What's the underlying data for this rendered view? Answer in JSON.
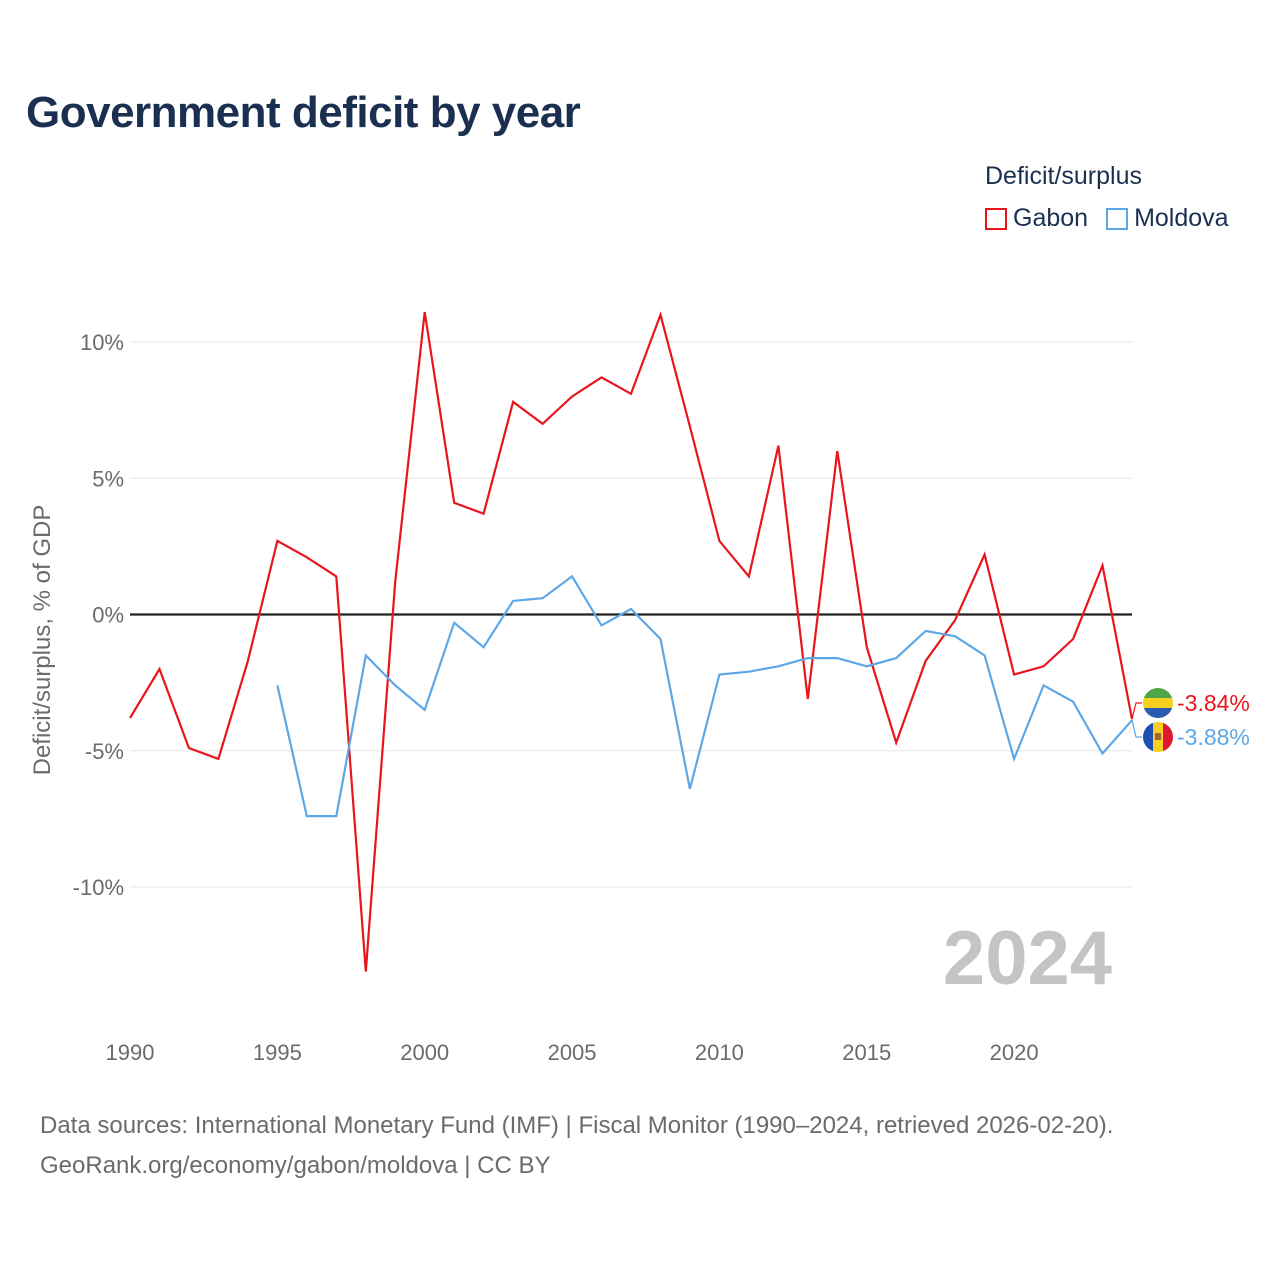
{
  "title": "Government deficit by year",
  "legend": {
    "title": "Deficit/surplus",
    "items": [
      {
        "name": "Gabon",
        "color": "#e8161b"
      },
      {
        "name": "Moldova",
        "color": "#5ea7e6"
      }
    ]
  },
  "footer": {
    "line1": "Data sources: International Monetary Fund (IMF) | Fiscal Monitor (1990–2024, retrieved 2026-02-20).",
    "line2": "GeoRank.org/economy/gabon/moldova | CC BY"
  },
  "year_watermark": "2024",
  "chart_data": {
    "type": "line",
    "title": "Government deficit by year",
    "xlabel": "",
    "ylabel": "Deficit/surplus, % of GDP",
    "xlim": [
      1990,
      2024
    ],
    "ylim": [
      -14,
      12
    ],
    "x_ticks": [
      1990,
      1995,
      2000,
      2005,
      2010,
      2015,
      2020
    ],
    "y_ticks": [
      {
        "value": 10,
        "label": "10%"
      },
      {
        "value": 5,
        "label": "5%"
      },
      {
        "value": 0,
        "label": "0%"
      },
      {
        "value": -5,
        "label": "-5%"
      },
      {
        "value": -10,
        "label": "-10%"
      }
    ],
    "series": [
      {
        "name": "Gabon",
        "color": "#e8161b",
        "x": [
          1990,
          1991,
          1992,
          1993,
          1994,
          1995,
          1996,
          1997,
          1998,
          1999,
          2000,
          2001,
          2002,
          2003,
          2004,
          2005,
          2006,
          2007,
          2008,
          2009,
          2010,
          2011,
          2012,
          2013,
          2014,
          2015,
          2016,
          2017,
          2018,
          2019,
          2020,
          2021,
          2022,
          2023,
          2024
        ],
        "values": [
          -3.8,
          -2.0,
          -4.9,
          -5.3,
          -1.7,
          2.7,
          2.1,
          1.4,
          -13.1,
          1.2,
          11.1,
          4.1,
          3.7,
          7.8,
          7.0,
          8.0,
          8.7,
          8.1,
          11.0,
          6.9,
          2.7,
          1.4,
          6.2,
          -3.1,
          6.0,
          -1.2,
          -4.7,
          -1.7,
          -0.2,
          2.2,
          -2.2,
          -1.9,
          -0.9,
          1.8,
          -3.84
        ],
        "end_label": "-3.84%"
      },
      {
        "name": "Moldova",
        "color": "#5ea7e6",
        "x": [
          1995,
          1996,
          1997,
          1998,
          1999,
          2000,
          2001,
          2002,
          2003,
          2004,
          2005,
          2006,
          2007,
          2008,
          2009,
          2010,
          2011,
          2012,
          2013,
          2014,
          2015,
          2016,
          2017,
          2018,
          2019,
          2020,
          2021,
          2022,
          2023,
          2024
        ],
        "values": [
          -2.6,
          -7.4,
          -7.4,
          -1.5,
          -2.6,
          -3.5,
          -0.3,
          -1.2,
          0.5,
          0.6,
          1.4,
          -0.4,
          0.2,
          -0.9,
          -6.4,
          -2.2,
          -2.1,
          -1.9,
          -1.6,
          -1.6,
          -1.9,
          -1.6,
          -0.6,
          -0.8,
          -1.5,
          -5.3,
          -2.6,
          -3.2,
          -5.1,
          -3.88
        ],
        "end_label": "-3.88%"
      }
    ]
  }
}
